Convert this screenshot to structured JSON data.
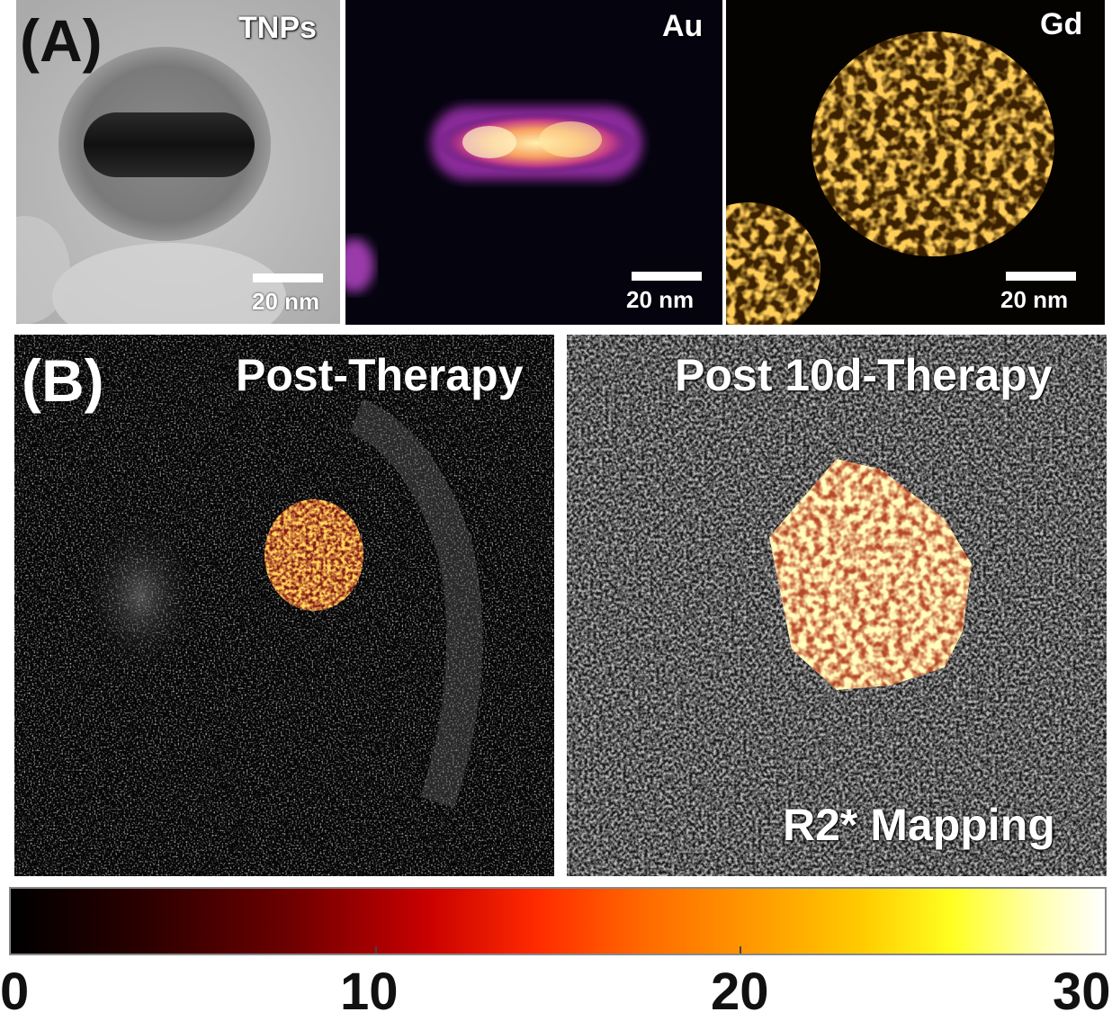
{
  "panel_a": {
    "label": "(A)",
    "images": [
      {
        "title": "TNPs",
        "scale_label": "20 nm"
      },
      {
        "title": "Au",
        "scale_label": "20 nm"
      },
      {
        "title": "Gd",
        "scale_label": "20 nm"
      }
    ]
  },
  "panel_b": {
    "label": "(B)",
    "left_title": "Post-Therapy",
    "right_title": "Post 10d-Therapy",
    "mapping_label": "R2* Mapping"
  },
  "colorbar": {
    "ticks": [
      "0",
      "10",
      "20",
      "30"
    ],
    "range": [
      0,
      30
    ]
  }
}
